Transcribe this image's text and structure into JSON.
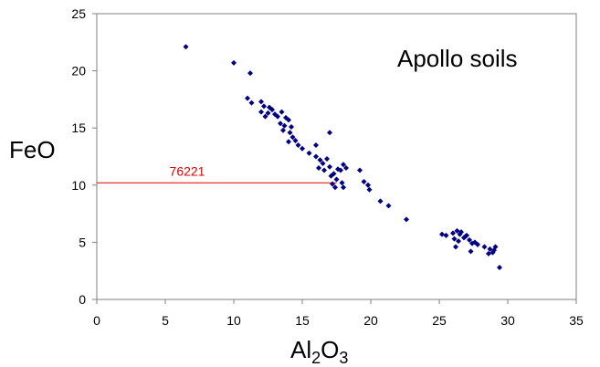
{
  "chart_data": {
    "type": "scatter",
    "title": "",
    "annotation_text": "Apollo soils",
    "xlabel": {
      "main": "Al",
      "sub1": "2",
      "mid": "O",
      "sub2": "3"
    },
    "ylabel": "FeO",
    "xlim": [
      0,
      35
    ],
    "ylim": [
      0,
      25
    ],
    "xticks": [
      "0",
      "5",
      "10",
      "15",
      "20",
      "25",
      "30",
      "35"
    ],
    "yticks": [
      "0",
      "5",
      "10",
      "15",
      "20",
      "25"
    ],
    "grid": false,
    "legend": "none",
    "marker_color": "#000080",
    "reference_line": {
      "label": "76221",
      "y": 10.2,
      "x_start": 0,
      "x_end": 17.5,
      "color": "#e00000"
    },
    "series": [
      {
        "points": [
          [
            6.5,
            22.1
          ],
          [
            10.0,
            20.7
          ],
          [
            11.2,
            19.8
          ],
          [
            11.0,
            17.6
          ],
          [
            11.3,
            17.2
          ],
          [
            12.0,
            17.3
          ],
          [
            12.2,
            16.9
          ],
          [
            12.0,
            16.4
          ],
          [
            12.3,
            16.0
          ],
          [
            12.5,
            16.3
          ],
          [
            12.6,
            16.8
          ],
          [
            12.8,
            16.6
          ],
          [
            13.0,
            16.2
          ],
          [
            13.2,
            16.0
          ],
          [
            13.5,
            16.4
          ],
          [
            13.8,
            15.9
          ],
          [
            13.4,
            15.4
          ],
          [
            13.7,
            15.2
          ],
          [
            14.0,
            15.7
          ],
          [
            14.2,
            15.1
          ],
          [
            13.6,
            14.8
          ],
          [
            14.1,
            14.6
          ],
          [
            14.3,
            14.2
          ],
          [
            14.5,
            13.9
          ],
          [
            14.0,
            13.8
          ],
          [
            14.7,
            13.5
          ],
          [
            15.0,
            13.2
          ],
          [
            15.5,
            12.8
          ],
          [
            16.0,
            12.5
          ],
          [
            16.3,
            12.2
          ],
          [
            16.5,
            11.9
          ],
          [
            16.8,
            12.3
          ],
          [
            16.2,
            11.5
          ],
          [
            16.6,
            11.3
          ],
          [
            17.0,
            11.6
          ],
          [
            17.3,
            11.0
          ],
          [
            17.6,
            11.4
          ],
          [
            17.8,
            11.3
          ],
          [
            17.1,
            10.8
          ],
          [
            17.5,
            10.5
          ],
          [
            17.2,
            10.1
          ],
          [
            17.4,
            9.8
          ],
          [
            17.9,
            10.2
          ],
          [
            18.0,
            11.8
          ],
          [
            18.2,
            11.5
          ],
          [
            17.0,
            14.6
          ],
          [
            16.0,
            13.5
          ],
          [
            19.2,
            11.3
          ],
          [
            19.8,
            10.0
          ],
          [
            19.9,
            9.6
          ],
          [
            19.5,
            10.3
          ],
          [
            18.0,
            9.8
          ],
          [
            20.7,
            8.6
          ],
          [
            21.3,
            8.2
          ],
          [
            22.6,
            7.0
          ],
          [
            25.2,
            5.7
          ],
          [
            25.5,
            5.6
          ],
          [
            26.0,
            5.8
          ],
          [
            26.3,
            6.0
          ],
          [
            26.5,
            5.7
          ],
          [
            26.1,
            5.3
          ],
          [
            26.4,
            5.1
          ],
          [
            26.8,
            5.4
          ],
          [
            27.0,
            5.6
          ],
          [
            27.2,
            5.2
          ],
          [
            27.4,
            4.9
          ],
          [
            27.6,
            5.0
          ],
          [
            26.2,
            4.6
          ],
          [
            27.3,
            4.2
          ],
          [
            28.3,
            4.6
          ],
          [
            28.7,
            4.4
          ],
          [
            28.9,
            4.1
          ],
          [
            29.1,
            4.6
          ],
          [
            28.6,
            4.0
          ],
          [
            29.4,
            2.8
          ],
          [
            26.6,
            5.9
          ],
          [
            26.9,
            5.5
          ],
          [
            27.8,
            4.8
          ],
          [
            29.0,
            4.3
          ]
        ]
      }
    ]
  }
}
